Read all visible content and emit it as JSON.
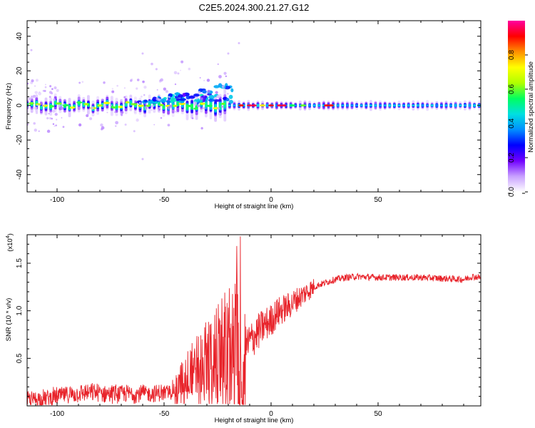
{
  "chart_data": [
    {
      "type": "heatmap",
      "title": "C2E5.2024.300.21.27.G12",
      "xlabel": "Height of straight line (km)",
      "ylabel": "Frequency (Hz)",
      "xlim": [
        -114,
        98
      ],
      "ylim": [
        -50,
        49
      ],
      "xticks": [
        -100,
        -50,
        0,
        50
      ],
      "yticks": [
        -40,
        -20,
        0,
        20,
        40
      ],
      "colorbar": {
        "label": "Normalized spectral amplitude",
        "range": [
          0,
          1
        ],
        "ticks": [
          "0.0",
          "0.2",
          "0.4",
          "0.6",
          "0.8"
        ],
        "colors": [
          "#ffffff",
          "#c8a0ff",
          "#7000ff",
          "#0000ff",
          "#0090ff",
          "#00e0e0",
          "#00ff60",
          "#b0ff00",
          "#ffff00",
          "#ff9000",
          "#ff0000",
          "#ff00a0"
        ]
      },
      "grid": false
    },
    {
      "type": "line",
      "xlabel": "Height of straight line (km)",
      "ylabel": "SNR (10 * v/v)",
      "yscale_label": "(x10",
      "yscale_exp": "4",
      "xlim": [
        -114,
        98
      ],
      "ylim": [
        0,
        1.8
      ],
      "xticks": [
        -100,
        -50,
        0,
        50
      ],
      "yticks": [
        0.5,
        1.0,
        1.5
      ],
      "ytick_labels": [
        "0.5",
        "1.0",
        "1.5"
      ],
      "color": "#e8232a",
      "grid": false,
      "series": [
        {
          "x": [
            -114,
            -105,
            -95,
            -85,
            -75,
            -65,
            -55,
            -48,
            -44,
            -40,
            -36,
            -32,
            -28,
            -24,
            -20,
            -16,
            -14,
            -12,
            -9,
            -6,
            -3,
            0,
            3,
            6,
            9,
            12,
            15,
            18,
            22,
            26,
            30,
            35,
            40,
            50,
            60,
            70,
            80,
            90,
            94,
            98
          ],
          "y": [
            0.06,
            0.08,
            0.12,
            0.14,
            0.13,
            0.13,
            0.13,
            0.14,
            0.2,
            0.32,
            0.42,
            0.5,
            0.55,
            0.62,
            0.68,
            0.78,
            0.2,
            0.62,
            0.7,
            0.78,
            0.85,
            0.9,
            0.98,
            1.02,
            1.06,
            1.12,
            1.17,
            1.22,
            1.27,
            1.3,
            1.33,
            1.35,
            1.36,
            1.35,
            1.35,
            1.35,
            1.34,
            1.33,
            1.36,
            1.35
          ]
        }
      ]
    }
  ]
}
